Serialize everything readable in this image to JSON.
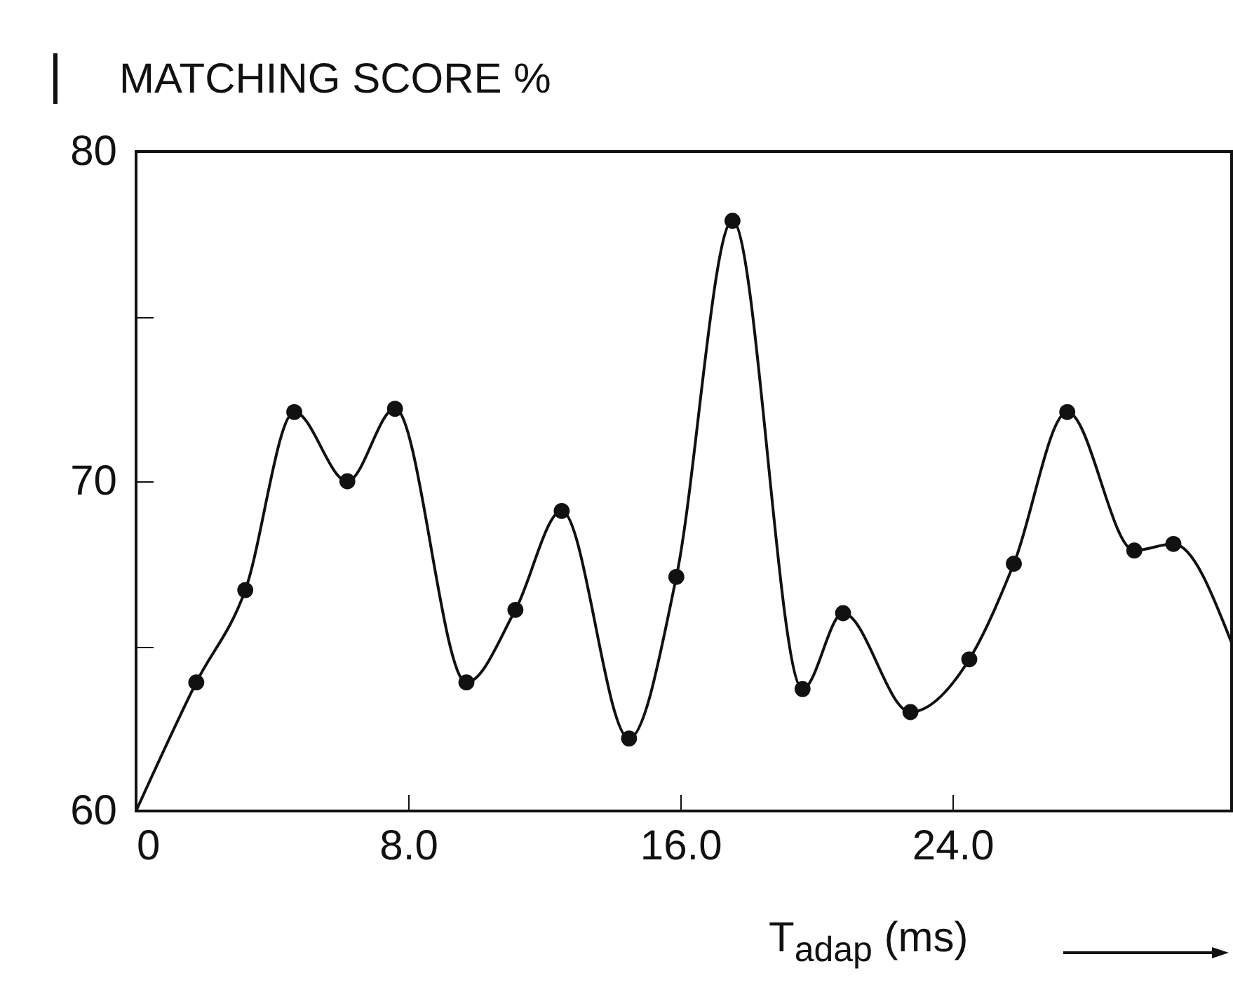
{
  "chart_data": {
    "type": "line",
    "xlabel": "T$_{adap}$ (ms)",
    "ylabel": "MATCHING SCORE %",
    "xlim": [
      0,
      32.2
    ],
    "ylim": [
      60,
      80
    ],
    "xticks": [
      0,
      {
        "value": 8,
        "label": "8.0"
      },
      {
        "value": 16,
        "label": "16.0"
      },
      {
        "value": 24,
        "label": "24.0"
      }
    ],
    "yticks": [
      60,
      {
        "value": 65,
        "label": null
      },
      70,
      {
        "value": 75,
        "label": null
      },
      80
    ],
    "grid": false,
    "series": [
      {
        "type": "line",
        "color": "#111111",
        "marker": "none",
        "x": [
          0,
          1.77,
          3.21,
          4.65,
          6.21,
          7.61,
          9.71,
          11.15,
          12.51,
          14.49,
          15.88,
          17.53,
          19.59,
          20.78,
          22.76,
          24.49,
          25.8,
          27.37,
          29.34,
          30.49,
          32.2
        ],
        "values": [
          60,
          63.9,
          66.7,
          72.1,
          70,
          72.2,
          63.9,
          66.1,
          69.1,
          62.2,
          67.1,
          77.9,
          63.7,
          66,
          63,
          64.6,
          67.5,
          72.1,
          67.9,
          68.1,
          65.1
        ]
      },
      {
        "type": "scatter",
        "color": "#111111",
        "marker": "circle",
        "x": [
          1.77,
          3.21,
          4.65,
          6.21,
          7.61,
          9.71,
          11.15,
          12.51,
          14.49,
          15.88,
          17.53,
          19.59,
          20.78,
          22.76,
          24.49,
          25.8,
          27.37,
          29.34,
          30.49
        ],
        "values": [
          63.9,
          66.7,
          72.1,
          70,
          72.2,
          63.9,
          66.1,
          69.1,
          62.2,
          67.1,
          77.9,
          63.7,
          66,
          63,
          64.6,
          67.5,
          72.1,
          67.9,
          68.1
        ]
      }
    ]
  }
}
